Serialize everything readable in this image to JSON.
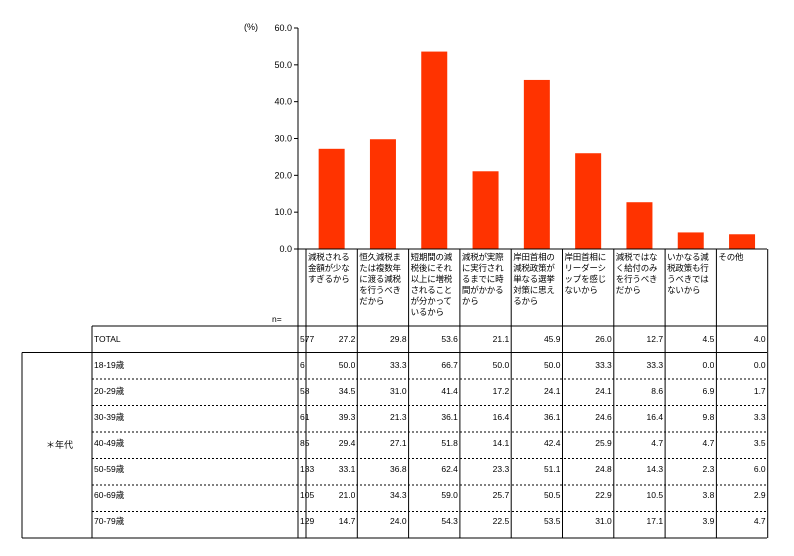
{
  "chart_data": {
    "type": "bar",
    "unit_label": "(%)",
    "ylim": [
      0,
      60
    ],
    "yticks": [
      "0.0",
      "10.0",
      "20.0",
      "30.0",
      "40.0",
      "50.0",
      "60.0"
    ],
    "categories": [
      "減税される金額が少なすぎるから",
      "恒久減税または複数年に渡る減税を行うべきだから",
      "短期間の減税後にそれ以上に増税されることが分かっているから",
      "減税が実際に実行されるまでに時間がかかるから",
      "岸田首相の減税政策が単なる選挙対策に思えるから",
      "岸田首相にリーダーシップを感じないから",
      "減税ではなく給付のみを行うべきだから",
      "いかなる減税政策も行うべきではないから",
      "その他"
    ],
    "values": [
      27.2,
      29.8,
      53.6,
      21.1,
      45.9,
      26.0,
      12.7,
      4.5,
      4.0
    ],
    "bar_color": "#ff3300"
  },
  "table": {
    "n_header": "n=",
    "group_label": "＊年代",
    "total": {
      "label": "TOTAL",
      "n": "577",
      "values": [
        "27.2",
        "29.8",
        "53.6",
        "21.1",
        "45.9",
        "26.0",
        "12.7",
        "4.5",
        "4.0"
      ]
    },
    "rows": [
      {
        "label": "18-19歳",
        "n": "6",
        "values": [
          "50.0",
          "33.3",
          "66.7",
          "50.0",
          "50.0",
          "33.3",
          "33.3",
          "0.0",
          "0.0"
        ]
      },
      {
        "label": "20-29歳",
        "n": "58",
        "values": [
          "34.5",
          "31.0",
          "41.4",
          "17.2",
          "24.1",
          "24.1",
          "8.6",
          "6.9",
          "1.7"
        ]
      },
      {
        "label": "30-39歳",
        "n": "61",
        "values": [
          "39.3",
          "21.3",
          "36.1",
          "16.4",
          "36.1",
          "24.6",
          "16.4",
          "9.8",
          "3.3"
        ]
      },
      {
        "label": "40-49歳",
        "n": "85",
        "values": [
          "29.4",
          "27.1",
          "51.8",
          "14.1",
          "42.4",
          "25.9",
          "4.7",
          "4.7",
          "3.5"
        ]
      },
      {
        "label": "50-59歳",
        "n": "133",
        "values": [
          "33.1",
          "36.8",
          "62.4",
          "23.3",
          "51.1",
          "24.8",
          "14.3",
          "2.3",
          "6.0"
        ]
      },
      {
        "label": "60-69歳",
        "n": "105",
        "values": [
          "21.0",
          "34.3",
          "59.0",
          "25.7",
          "50.5",
          "22.9",
          "10.5",
          "3.8",
          "2.9"
        ]
      },
      {
        "label": "70-79歳",
        "n": "129",
        "values": [
          "14.7",
          "24.0",
          "54.3",
          "22.5",
          "53.5",
          "31.0",
          "17.1",
          "3.9",
          "4.7"
        ]
      }
    ]
  }
}
